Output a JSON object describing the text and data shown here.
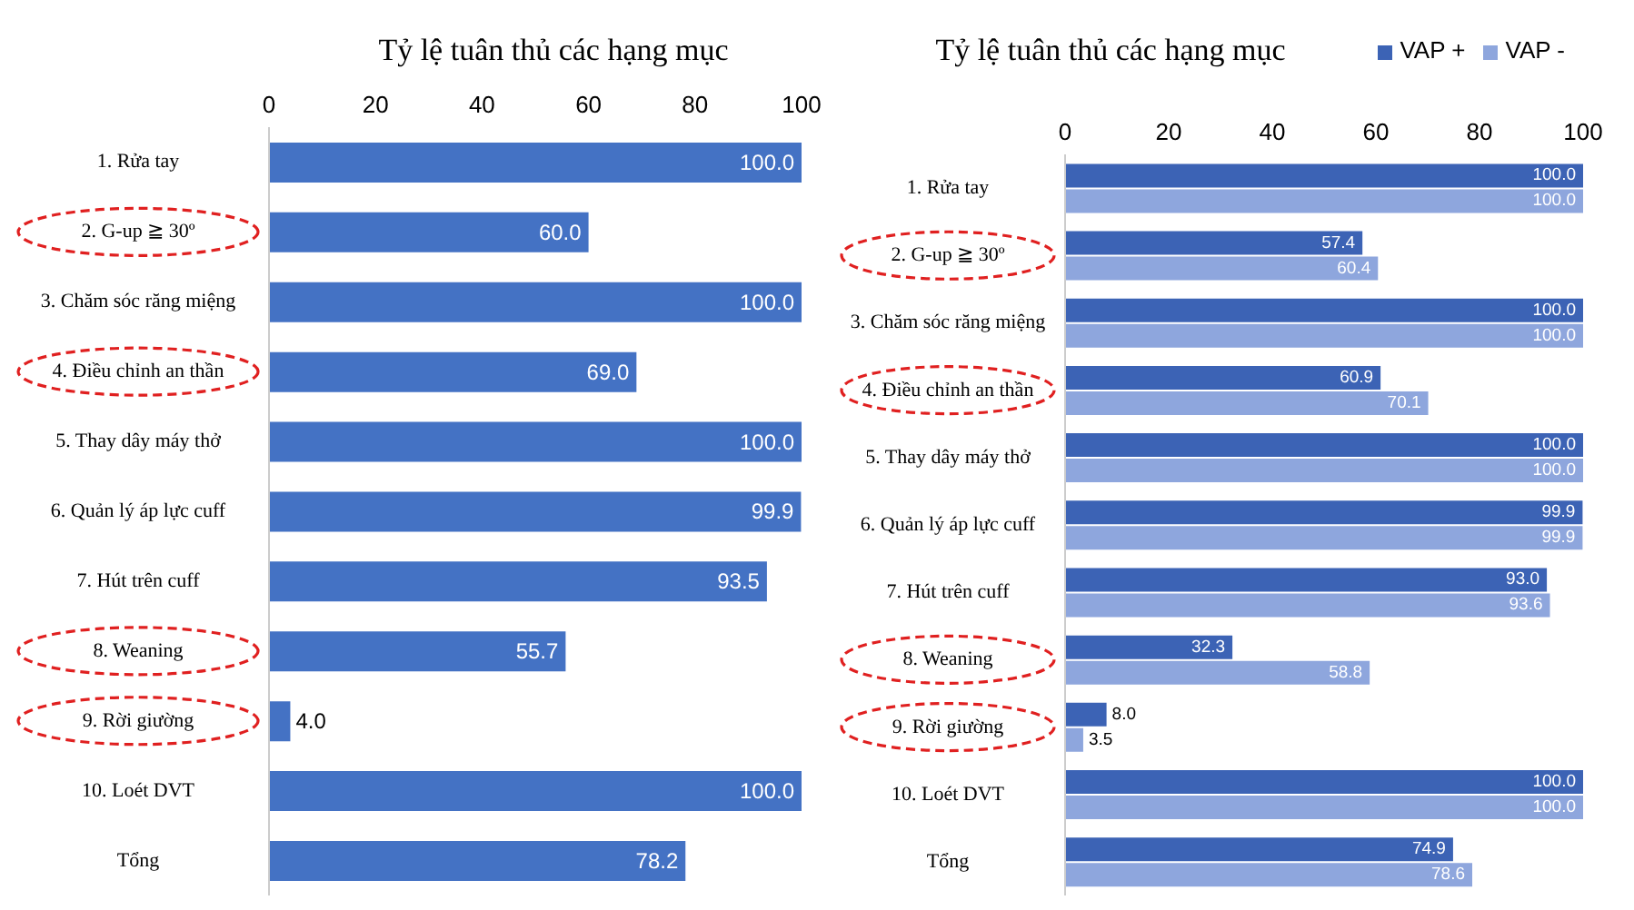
{
  "chart_data": [
    {
      "type": "bar",
      "orientation": "horizontal",
      "title": "Tỷ lệ tuân thủ các hạng mục",
      "categories": [
        "1. Rửa tay",
        "2. G-up ≧ 30º",
        "3. Chăm sóc răng miệng",
        "4. Điều chỉnh an thần",
        "5. Thay dây máy thở",
        "6. Quản lý áp lực cuff",
        "7. Hút trên cuff",
        "8. Weaning",
        "9. Rời giường",
        "10. Loét DVT",
        "Tổng"
      ],
      "series": [
        {
          "color": "#4472c4",
          "values": [
            100.0,
            60.0,
            100.0,
            69.0,
            100.0,
            99.9,
            93.5,
            55.7,
            4.0,
            100.0,
            78.2
          ],
          "value_labels": [
            "100.0",
            "60.0",
            "100.0",
            "69.0",
            "100.0",
            "99.9",
            "93.5",
            "55.7",
            "4.0",
            "100.0",
            "78.2"
          ]
        }
      ],
      "xlim": [
        0,
        100
      ],
      "xticks": [
        0,
        20,
        40,
        60,
        80,
        100
      ]
    },
    {
      "type": "bar",
      "orientation": "horizontal",
      "title": "Tỷ lệ tuân thủ các hạng mục",
      "categories": [
        "1. Rửa tay",
        "2. G-up ≧ 30º",
        "3. Chăm sóc răng miệng",
        "4. Điều chỉnh an thần",
        "5. Thay dây máy thở",
        "6. Quản lý áp lực cuff",
        "7. Hút trên cuff",
        "8. Weaning",
        "9. Rời giường",
        "10. Loét DVT",
        "Tổng"
      ],
      "series": [
        {
          "name": "VAP +",
          "color": "#3c63b5",
          "values": [
            100.0,
            57.4,
            100.0,
            60.9,
            100.0,
            99.9,
            93.0,
            32.3,
            8.0,
            100.0,
            74.9
          ],
          "value_labels": [
            "100.0",
            "57.4",
            "100.0",
            "60.9",
            "100.0",
            "99.9",
            "93.0",
            "32.3",
            "8.0",
            "100.0",
            "74.9"
          ]
        },
        {
          "name": "VAP -",
          "color": "#8ea6dd",
          "values": [
            100.0,
            60.4,
            100.0,
            70.1,
            100.0,
            99.9,
            93.6,
            58.8,
            3.5,
            100.0,
            78.6
          ],
          "value_labels": [
            "100.0",
            "60.4",
            "100.0",
            "70.1",
            "100.0",
            "99.9",
            "93.6",
            "58.8",
            "3.5",
            "100.0",
            "78.6"
          ]
        }
      ],
      "xlim": [
        0,
        100
      ],
      "xticks": [
        0,
        20,
        40,
        60,
        80,
        100
      ],
      "legend": "top right"
    }
  ]
}
